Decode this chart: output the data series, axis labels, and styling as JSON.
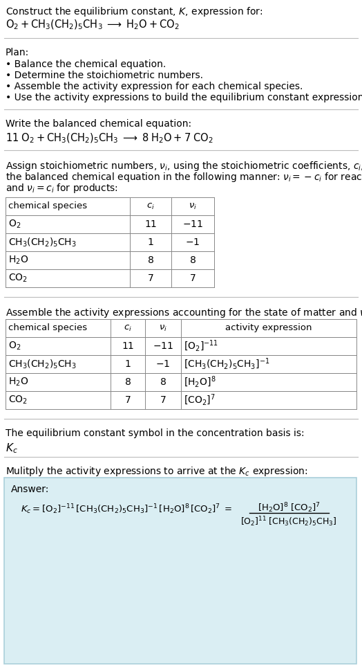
{
  "bg_color": "#ffffff",
  "table_border_color": "#888888",
  "answer_box_color": "#daeef3",
  "answer_box_border": "#aacfda",
  "separator_color": "#bbbbbb",
  "fs_base": 10.0,
  "sections": {
    "title": "Construct the equilibrium constant, $K$, expression for:",
    "rxn_unreacted": "O_2 + CH_3(CH_2)_5CH_3  ->  H_2O + CO_2",
    "plan_header": "Plan:",
    "plan_items": [
      "• Balance the chemical equation.",
      "• Determine the stoichiometric numbers.",
      "• Assemble the activity expression for each chemical species.",
      "• Use the activity expressions to build the equilibrium constant expression."
    ],
    "balanced_header": "Write the balanced chemical equation:",
    "stoich_intro_lines": [
      "Assign stoichiometric numbers, $\\nu_i$, using the stoichiometric coefficients, $c_i$, from",
      "the balanced chemical equation in the following manner: $\\nu_i = -c_i$ for reactants",
      "and $\\nu_i = c_i$ for products:"
    ],
    "kc_text": "The equilibrium constant symbol in the concentration basis is:",
    "multiply_text": "Mulitply the activity expressions to arrive at the $K_c$ expression:",
    "answer_label": "Answer:"
  }
}
